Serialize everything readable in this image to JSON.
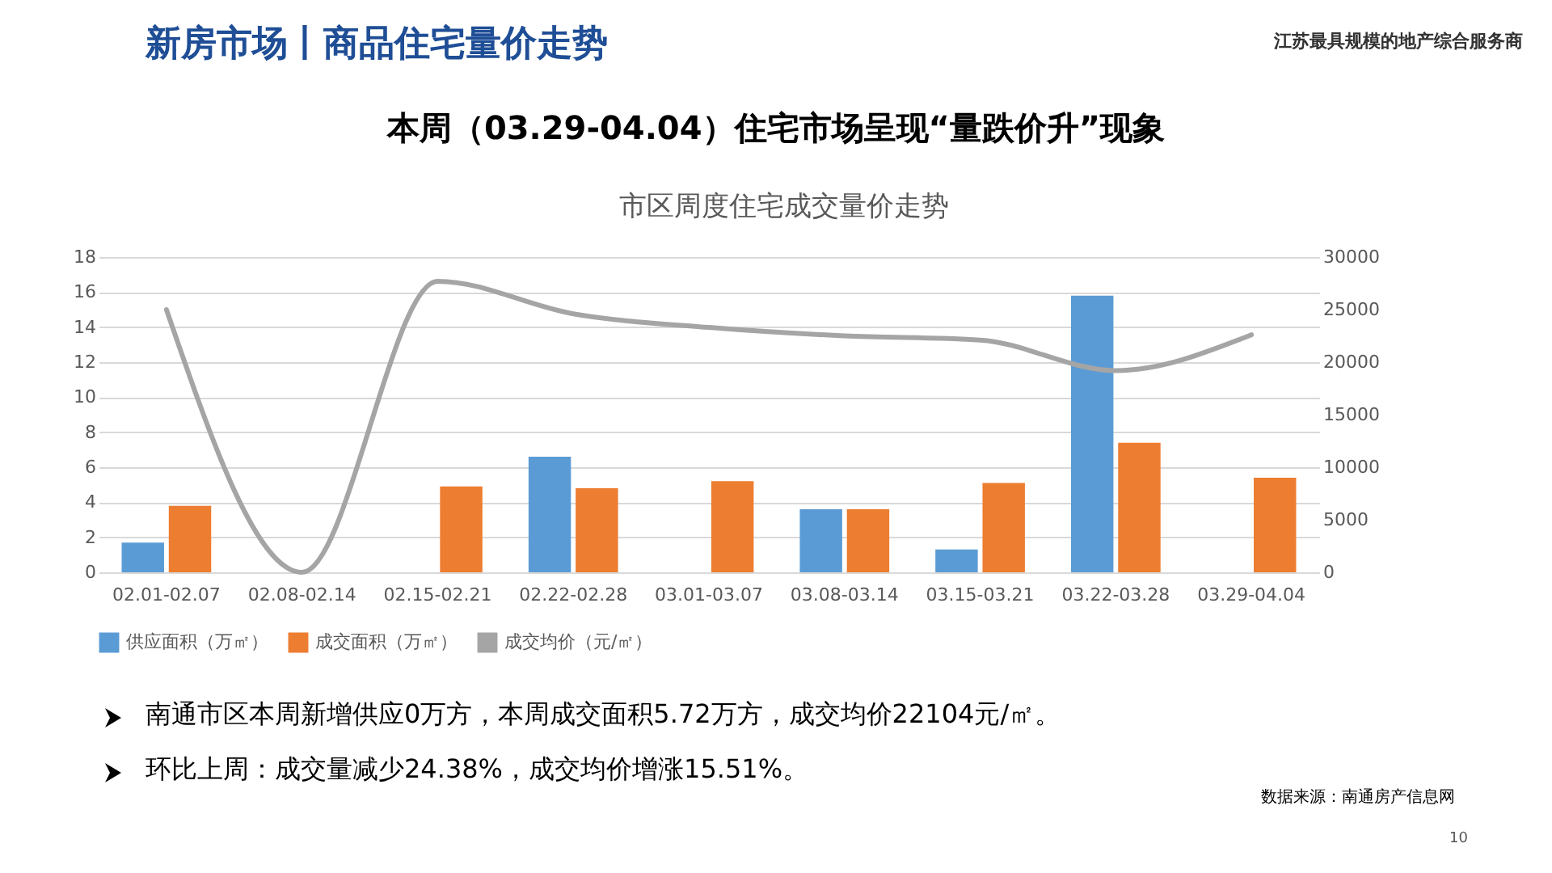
{
  "chart_data": {
    "type": "bar",
    "title": "市区周度住宅成交量价走势",
    "categories": [
      "02.01-02.07",
      "02.08-02.14",
      "02.15-02.21",
      "02.22-02.28",
      "03.01-03.07",
      "03.08-03.14",
      "03.15-03.21",
      "03.22-03.28",
      "03.29-04.04"
    ],
    "series": [
      {
        "name": "供应面积（万㎡）",
        "color": "#5b9bd5",
        "values": [
          1.7,
          null,
          null,
          6.6,
          null,
          3.6,
          1.3,
          15.8,
          null
        ]
      },
      {
        "name": "成交面积（万㎡）",
        "color": "#ed7d31",
        "values": [
          3.8,
          null,
          4.9,
          4.8,
          5.2,
          3.6,
          5.1,
          7.4,
          5.4
        ]
      },
      {
        "name": "成交均价（元/㎡）",
        "color": "#a5a5a5",
        "type": "line",
        "axis": "y2",
        "values": [
          25000,
          0,
          27700,
          24600,
          23300,
          22500,
          22100,
          19200,
          22600
        ]
      }
    ],
    "ylim": [
      0,
      18
    ],
    "yticks": [
      0,
      2,
      4,
      6,
      8,
      10,
      12,
      14,
      16,
      18
    ],
    "y2lim": [
      0,
      30000
    ],
    "y2ticks": [
      0,
      5000,
      10000,
      15000,
      20000,
      25000,
      30000
    ],
    "grid": "y",
    "legend": "bottom",
    "marker": "none",
    "annotations": [
      "新房市场丨商品住宅量价走势",
      "江苏最具规模的地产综合服务商",
      "本周（03.29-04.04）住宅市场呈现“量跌价升”现象",
      "南通市区本周新增供应0万方，本周成交面积5.72万方，成交均价22104元/㎡。",
      "环比上周：成交量减少24.38%，成交均价增涨15.51%。",
      "数据来源：南通房产信息网",
      "10"
    ]
  }
}
